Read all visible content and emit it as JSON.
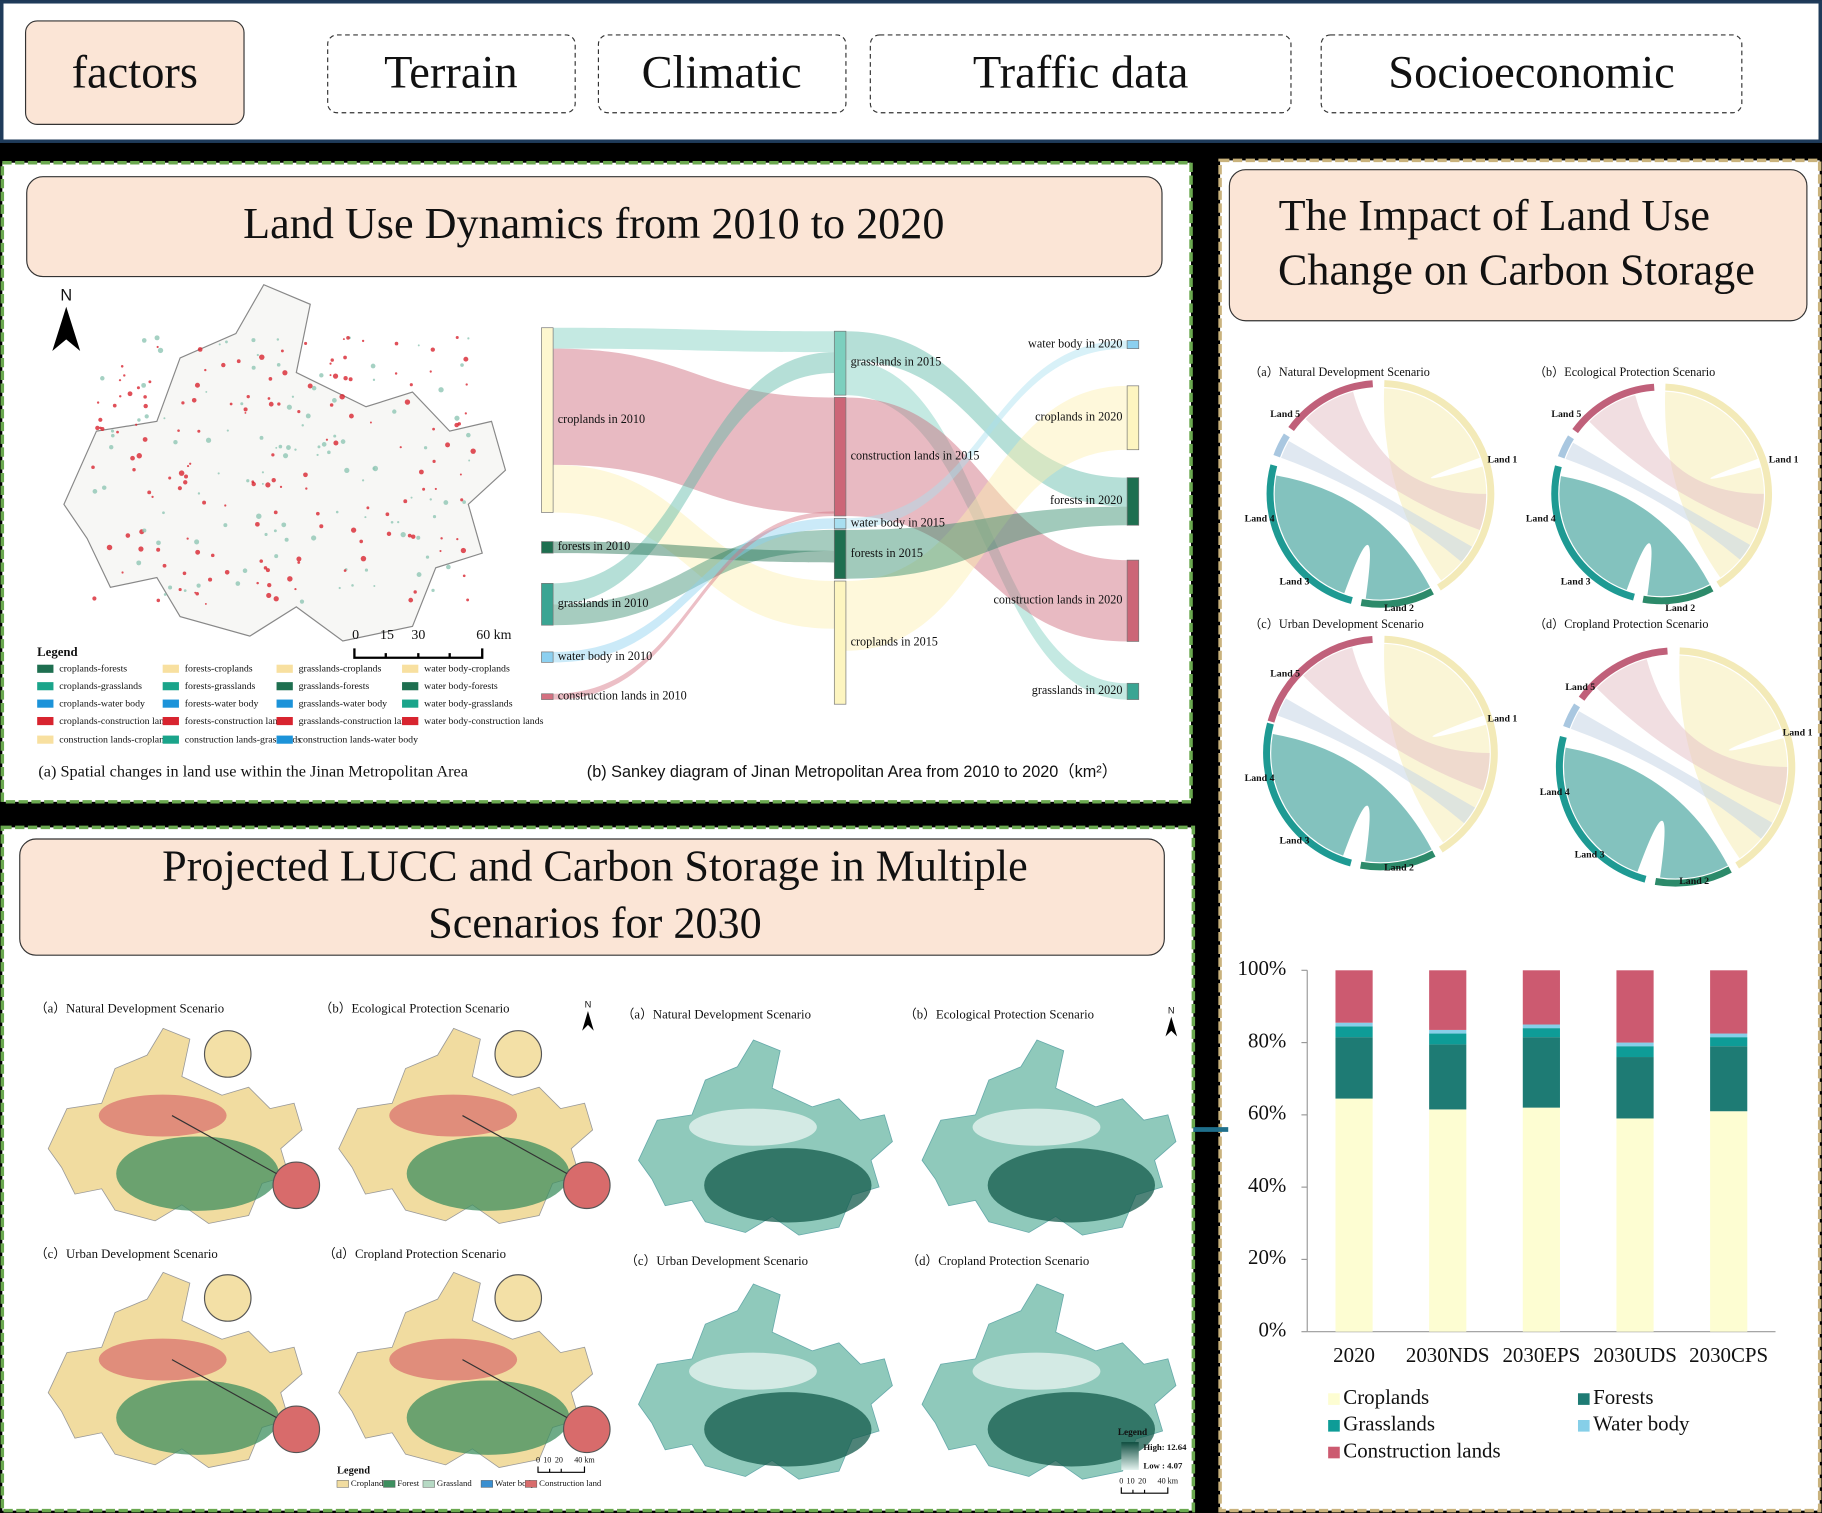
{
  "header": {
    "label": "factors",
    "items": [
      "Terrain",
      "Climatic",
      "Traffic data",
      "Socioeconomic"
    ]
  },
  "land_use_panel": {
    "title": "Land Use Dynamics from 2010 to 2020",
    "north": "N",
    "scale_labels": [
      "0",
      "15",
      "30",
      "60 km"
    ],
    "legend_title": "Legend",
    "legend_items": [
      "croplands-forests",
      "forests-croplands",
      "grasslands-croplands",
      "water body-croplands",
      "croplands-grasslands",
      "forests-grasslands",
      "grasslands-forests",
      "water body-forests",
      "croplands-water body",
      "forests-water body",
      "grasslands-water body",
      "water body-grasslands",
      "croplands-construction lands",
      "forests-construction lands",
      "grasslands-construction lands",
      "water body-construction lands",
      "construction lands-croplands",
      "construction lands-grasslands",
      "construction lands-water body"
    ],
    "caption_a": "(a) Spatial changes in land use within the Jinan Metropolitan Area",
    "caption_b": "(b) Sankey diagram of Jinan Metropolitan Area from 2010 to 2020（km²）",
    "sankey": {
      "left": [
        "croplands in 2010",
        "forests in 2010",
        "grasslands in 2010",
        "water body in 2010",
        "construction lands in 2010"
      ],
      "middle": [
        "grasslands in 2015",
        "construction lands in 2015",
        "water body in 2015",
        "forests in 2015",
        "croplands in 2015"
      ],
      "right": [
        "water body in 2020",
        "croplands in 2020",
        "forests in 2020",
        "construction lands in 2020",
        "grasslands in 2020"
      ]
    }
  },
  "projection_panel": {
    "title": [
      "Projected LUCC and Carbon Storage in Multiple",
      "Scenarios for 2030"
    ],
    "scenarios": [
      "（a）Natural Development Scenario",
      "（b）Ecological Protection Scenario",
      "（c）Urban Development Scenario",
      "（d）Cropland Protection Scenario"
    ],
    "north": "N",
    "legend_title": "Legend",
    "lucc_legend": [
      "Cropland",
      "Forest",
      "Grassland",
      "Water body",
      "Construction land"
    ],
    "scale_labels": [
      "0",
      "10",
      "20",
      "40 km"
    ],
    "carbon_legend": {
      "title": "Legend",
      "high": "High: 12.64",
      "low": "Low : 4.07"
    }
  },
  "carbon_panel": {
    "title": [
      "The Impact of Land Use",
      "Change on Carbon Storage"
    ],
    "chord": {
      "scenarios": [
        "（a）Natural Development Scenario",
        "（b）Ecological Protection Scenario",
        "（c）Urban Development Scenario",
        "（d）Cropland Protection Scenario"
      ],
      "land_labels": [
        "Land 1",
        "Land 2",
        "Land 3",
        "Land 4",
        "Land 5"
      ]
    }
  },
  "chart_data": {
    "type": "bar",
    "stacked": true,
    "categories": [
      "2020",
      "2030NDS",
      "2030EPS",
      "2030UDS",
      "2030CPS"
    ],
    "series": [
      {
        "name": "Croplands",
        "color": "#fdfdd2",
        "values": [
          64.5,
          61.5,
          62,
          59,
          61
        ]
      },
      {
        "name": "Forests",
        "color": "#1e7b74",
        "values": [
          17,
          18,
          19.5,
          17,
          18
        ]
      },
      {
        "name": "Grasslands",
        "color": "#0e9c97",
        "values": [
          3,
          3,
          2.5,
          3,
          2.5
        ]
      },
      {
        "name": "Water body",
        "color": "#86cfe8",
        "values": [
          1,
          1,
          1,
          1,
          1
        ]
      },
      {
        "name": "Construction lands",
        "color": "#cc5a70",
        "values": [
          14.5,
          16.5,
          15,
          20,
          17.5
        ]
      }
    ],
    "ylim": [
      0,
      100
    ],
    "yticks": [
      {
        "value": 0,
        "label": "0%"
      },
      {
        "value": 20,
        "label": "20%"
      },
      {
        "value": 40,
        "label": "40%"
      },
      {
        "value": 60,
        "label": "60%"
      },
      {
        "value": 80,
        "label": "80%"
      },
      {
        "value": 100,
        "label": "100%"
      }
    ],
    "grid": false
  }
}
